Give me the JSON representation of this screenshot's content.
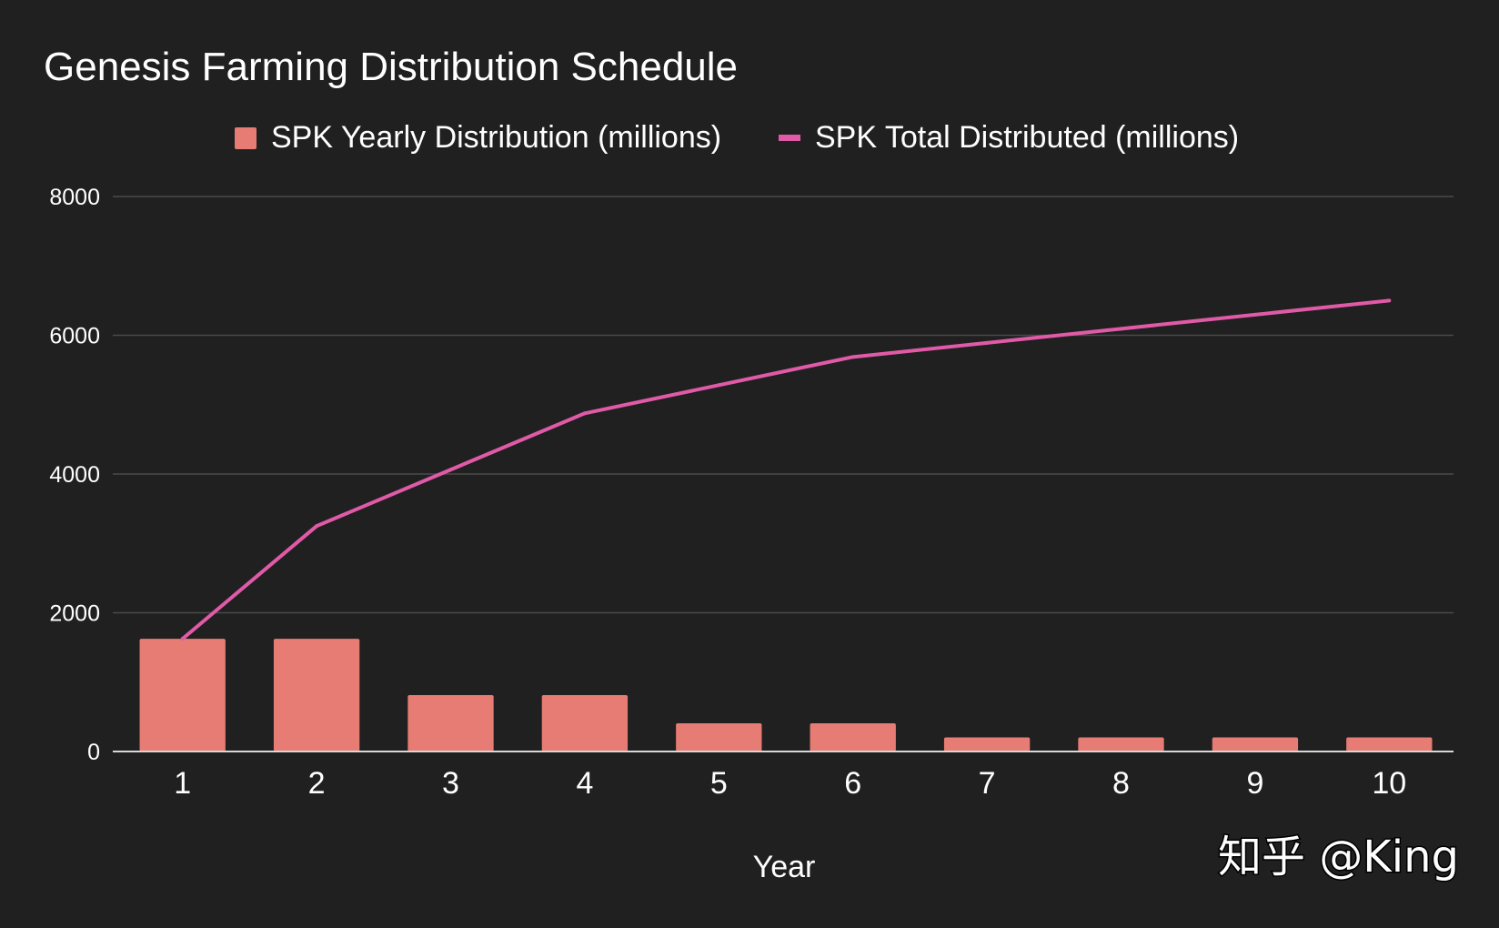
{
  "chart_data": {
    "type": "bar",
    "title": "Genesis Farming Distribution Schedule",
    "xlabel": "Year",
    "ylabel": "",
    "categories": [
      "1",
      "2",
      "3",
      "4",
      "5",
      "6",
      "7",
      "8",
      "9",
      "10"
    ],
    "ylim": [
      0,
      8000
    ],
    "yticks": [
      "0",
      "2000",
      "4000",
      "6000",
      "8000"
    ],
    "grid": true,
    "legend_position": "top-center",
    "series": [
      {
        "name": "SPK Yearly Distribution (millions)",
        "type": "bar",
        "color": "#e67c73",
        "values": [
          1625,
          1625,
          812.5,
          812.5,
          406.25,
          406.25,
          203.125,
          203.125,
          203.125,
          203.125
        ]
      },
      {
        "name": "SPK Total Distributed (millions)",
        "type": "line",
        "color": "#e05aa8",
        "values": [
          1625,
          3250,
          4062.5,
          4875,
          5281.25,
          5687.5,
          5890.625,
          6093.75,
          6296.875,
          6500
        ]
      }
    ]
  },
  "watermark": "知乎 @King"
}
